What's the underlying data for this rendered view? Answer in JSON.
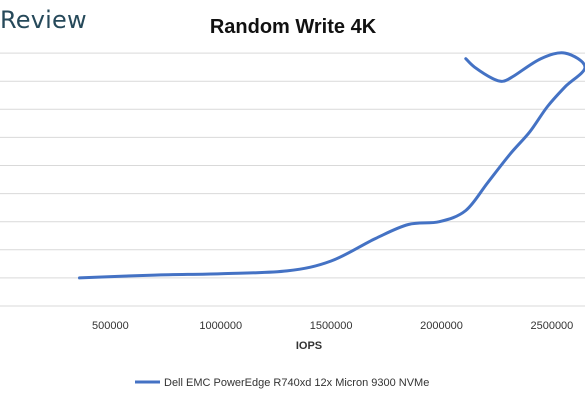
{
  "brand": {
    "text": "Review"
  },
  "chart_data": {
    "type": "line",
    "title": "Random Write 4K",
    "xlabel": "IOPS",
    "ylabel": "",
    "xlim": [
      0,
      2650000
    ],
    "xticks": [
      500000,
      1000000,
      1500000,
      2000000,
      2500000
    ],
    "xtick_labels": [
      "500000",
      "1000000",
      "1500000",
      "2000000",
      "2500000"
    ],
    "ylim": [
      0,
      10
    ],
    "ygrid_values": [
      1,
      2,
      3,
      4,
      5,
      6,
      7,
      8,
      9
    ],
    "grid": true,
    "legend_position": "bottom",
    "series": [
      {
        "name": "Dell EMC PowerEdge R740xd 12x Micron 9300 NVMe",
        "color": "#4472c4",
        "x": [
          360000,
          700000,
          1000000,
          1300000,
          1500000,
          1700000,
          1850000,
          1990000,
          2110000,
          2210000,
          2310000,
          2400000,
          2480000,
          2560000,
          2650000,
          2560000,
          2450000,
          2330000,
          2280000,
          2230000,
          2150000,
          2110000
        ],
        "y": [
          1.0,
          1.1,
          1.15,
          1.25,
          1.6,
          2.4,
          2.9,
          3.0,
          3.4,
          4.4,
          5.4,
          6.2,
          7.1,
          7.8,
          8.5,
          9.0,
          8.8,
          8.2,
          8.0,
          8.1,
          8.5,
          8.8
        ]
      }
    ]
  }
}
